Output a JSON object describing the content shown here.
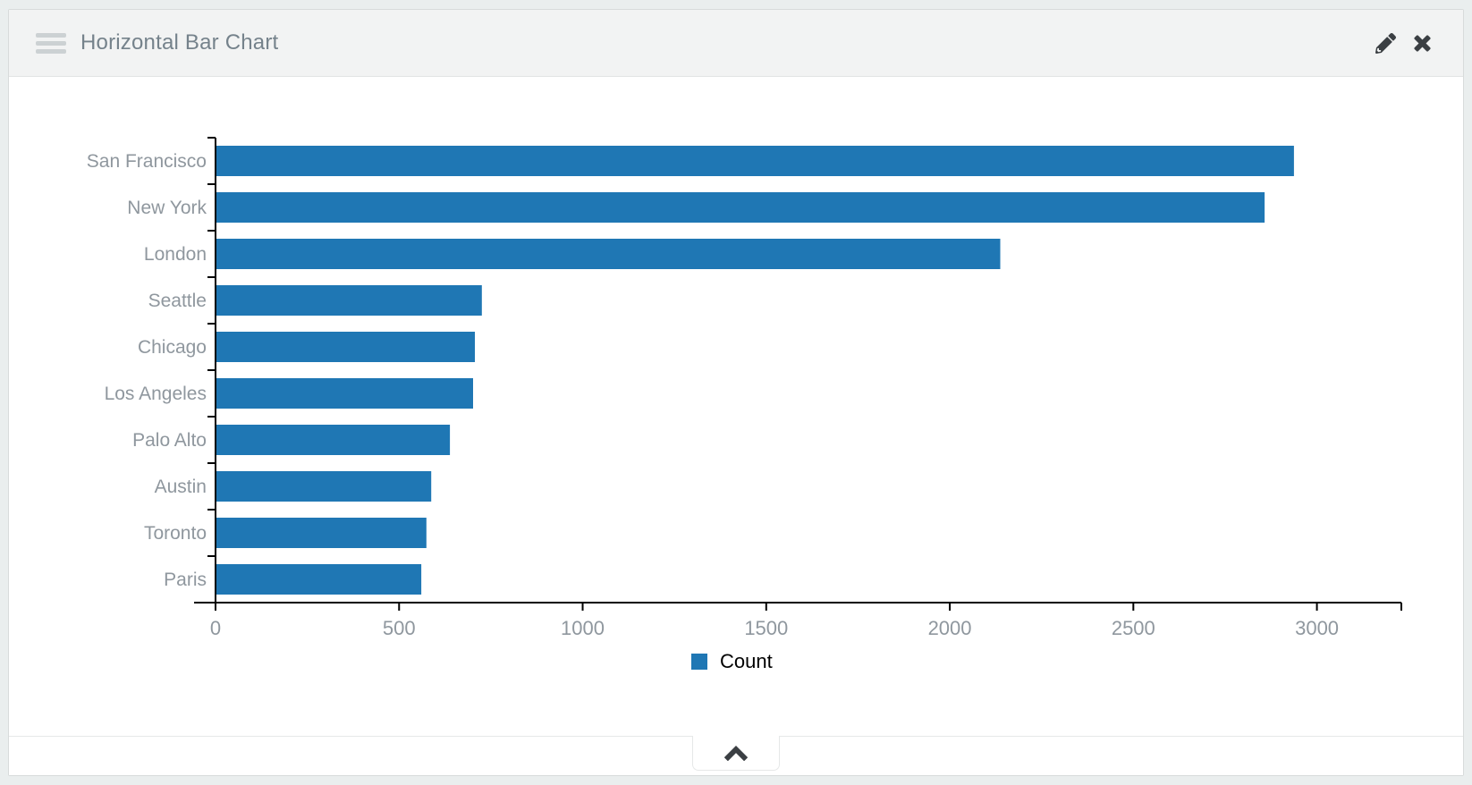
{
  "header": {
    "title": "Horizontal Bar Chart"
  },
  "icons": {
    "drag_handle": "drag-handle-icon",
    "edit": "pencil-icon",
    "close": "close-icon",
    "collapse": "chevron-up-icon",
    "legend_swatch": "legend-swatch"
  },
  "colors": {
    "bar": "#1f77b4",
    "axis": "#000000",
    "axis_label": "#8f979e",
    "title_text": "#75828b",
    "icon": "#3b3f43",
    "header_bg": "#f2f3f3",
    "page_bg": "#eaeeee"
  },
  "chart_data": {
    "type": "bar",
    "orientation": "horizontal",
    "title": "Horizontal Bar Chart",
    "xlabel": "",
    "ylabel": "",
    "categories": [
      "San Francisco",
      "New York",
      "London",
      "Seattle",
      "Chicago",
      "Los Angeles",
      "Palo Alto",
      "Austin",
      "Toronto",
      "Paris"
    ],
    "series": [
      {
        "name": "Count",
        "values": [
          2935,
          2855,
          2135,
          723,
          704,
          699,
          636,
          585,
          572,
          558
        ]
      }
    ],
    "x_ticks": [
      0,
      500,
      1000,
      1500,
      2000,
      2500,
      3000
    ],
    "xlim": [
      0,
      3230
    ],
    "grid": false,
    "legend": {
      "label": "Count",
      "position": "bottom"
    }
  }
}
